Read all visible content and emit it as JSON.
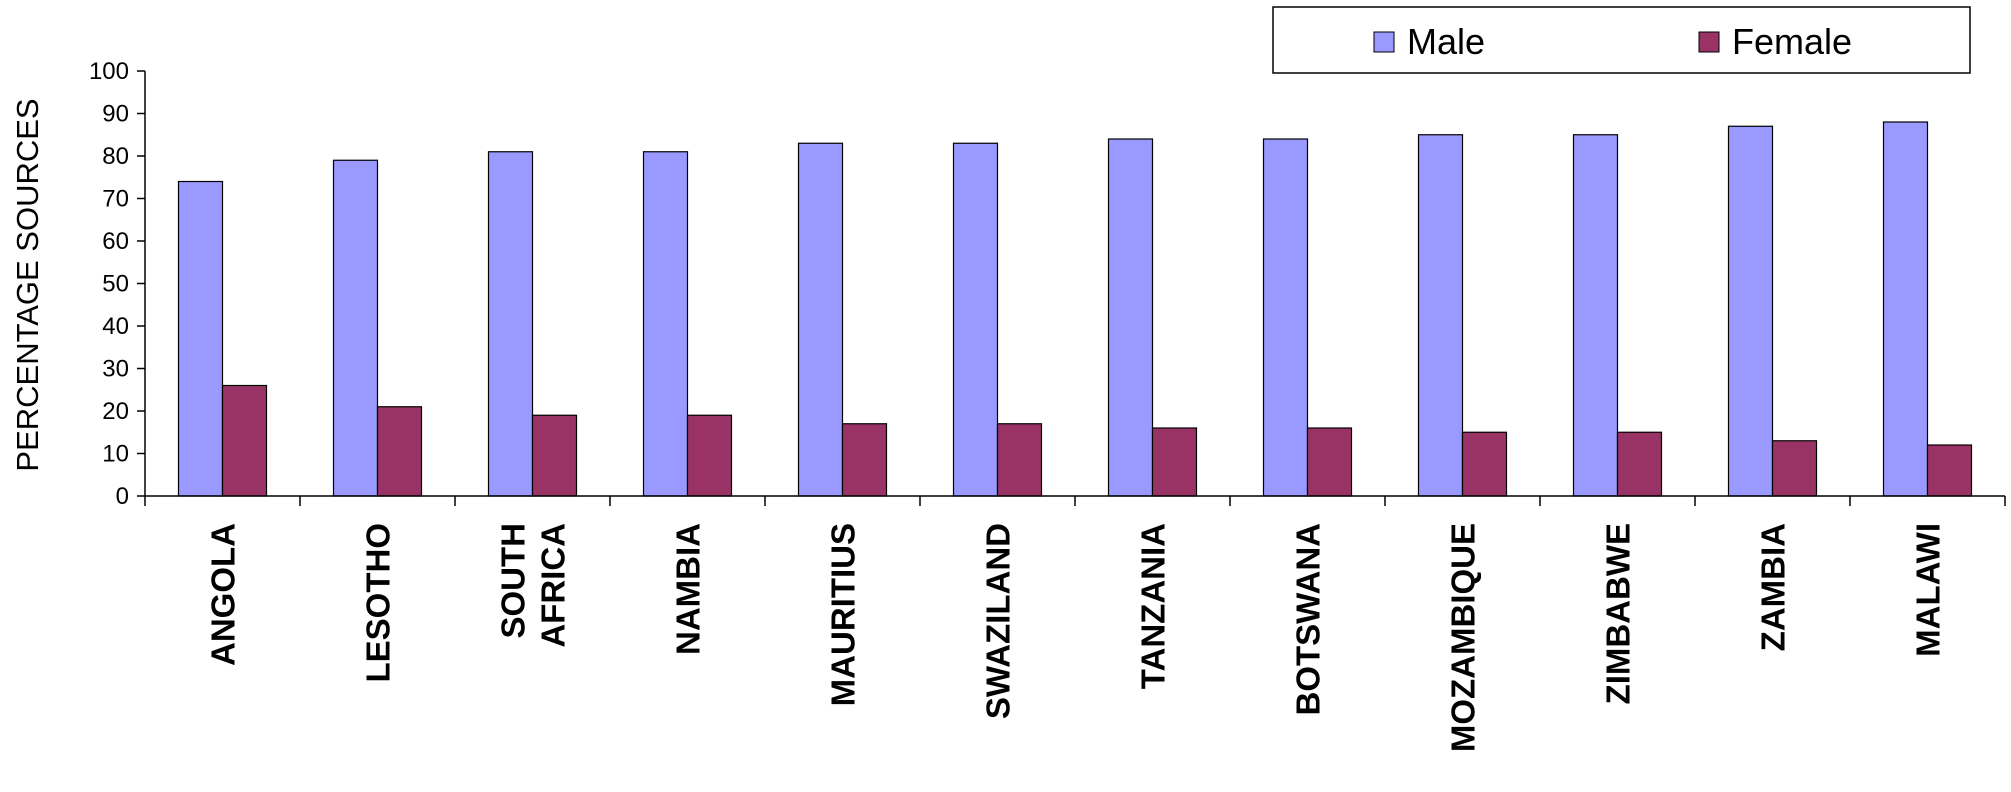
{
  "chart_data": {
    "type": "bar",
    "title": "",
    "xlabel": "",
    "ylabel": "PERCENTAGE SOURCES",
    "ylim": [
      0,
      100
    ],
    "yticks": [
      0,
      10,
      20,
      30,
      40,
      50,
      60,
      70,
      80,
      90,
      100
    ],
    "categories": [
      "ANGOLA",
      "LESOTHO",
      "SOUTH AFRICA",
      "NAMBIA",
      "MAURITIUS",
      "SWAZILAND",
      "TANZANIA",
      "BOTSWANA",
      "MOZAMBIQUE",
      "ZIMBABWE",
      "ZAMBIA",
      "MALAWI"
    ],
    "category_lines": [
      [
        "ANGOLA"
      ],
      [
        "LESOTHO"
      ],
      [
        "SOUTH",
        "AFRICA"
      ],
      [
        "NAMBIA"
      ],
      [
        "MAURITIUS"
      ],
      [
        "SWAZILAND"
      ],
      [
        "TANZANIA"
      ],
      [
        "BOTSWANA"
      ],
      [
        "MOZAMBIQUE"
      ],
      [
        "ZIMBABWE"
      ],
      [
        "ZAMBIA"
      ],
      [
        "MALAWI"
      ]
    ],
    "series": [
      {
        "name": "Male",
        "color": "#9999ff",
        "values": [
          74,
          79,
          81,
          81,
          83,
          83,
          84,
          84,
          85,
          85,
          87,
          88
        ]
      },
      {
        "name": "Female",
        "color": "#993366",
        "values": [
          26,
          21,
          19,
          19,
          17,
          17,
          16,
          16,
          15,
          15,
          13,
          12
        ]
      }
    ],
    "legend_position": "top-right",
    "grid": false
  }
}
